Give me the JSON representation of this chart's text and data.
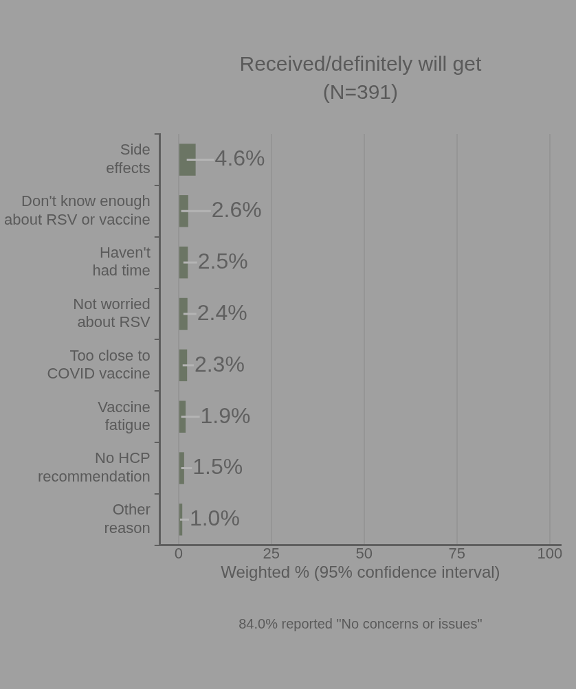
{
  "chart_data": {
    "type": "bar",
    "orientation": "horizontal",
    "title": "Received/definitely will get",
    "subtitle": "(N=391)",
    "xlabel": "Weighted % (95% confidence interval)",
    "categories": [
      "Side effects",
      "Don't know enough about RSV or vaccine",
      "Haven't had time",
      "Not worried about RSV",
      "Too close to COVID vaccine",
      "Vaccine fatigue",
      "No HCP recommendation",
      "Other reason"
    ],
    "values": [
      4.6,
      2.6,
      2.5,
      2.4,
      2.3,
      1.9,
      1.5,
      1.0
    ],
    "value_labels": [
      "4.6%",
      "2.6%",
      "2.5%",
      "2.4%",
      "2.3%",
      "1.9%",
      "1.5%",
      "1.0%"
    ],
    "errors": [
      [
        2.2,
        9.6
      ],
      [
        0.7,
        8.7
      ],
      [
        1.3,
        5.0
      ],
      [
        1.3,
        4.8
      ],
      [
        1.1,
        4.1
      ],
      [
        0.7,
        5.7
      ],
      [
        0.7,
        3.6
      ],
      [
        0.4,
        2.8
      ]
    ],
    "color": "#6b7564",
    "xlim": [
      -5,
      103
    ],
    "xticks": [
      0,
      25,
      50,
      75,
      100
    ],
    "grid": "x",
    "legend": false,
    "annotations": [
      "84.0% reported \"No concerns or issues\""
    ]
  }
}
